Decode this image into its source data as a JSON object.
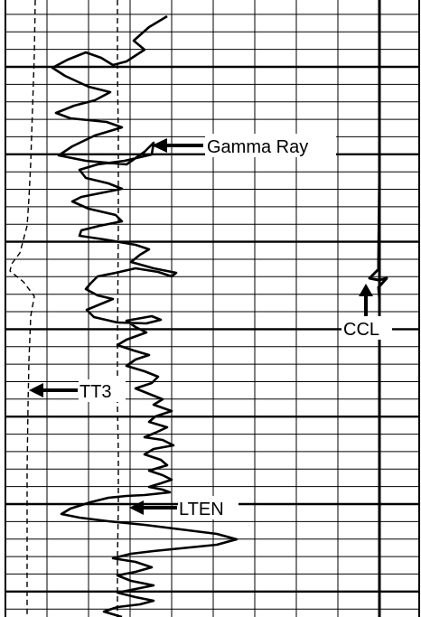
{
  "chart_data": {
    "type": "line",
    "title": "",
    "xlabel": "",
    "ylabel": "",
    "grid": true,
    "annotations": [
      "Gamma Ray",
      "CCL",
      "TT3",
      "LTEN"
    ],
    "series": [
      {
        "name": "Gamma Ray",
        "style": "solid",
        "x": [
          185,
          165,
          148,
          160,
          140,
          125,
          112,
          95,
          75,
          58,
          72,
          98,
          122,
          105,
          82,
          62,
          78,
          118,
          135,
          105,
          80,
          65,
          95,
          140,
          160,
          170,
          168,
          138,
          108,
          88,
          95,
          120,
          135,
          115,
          90,
          80,
          98,
          128,
          135,
          110,
          90,
          88,
          115,
          150,
          165,
          155,
          145,
          170,
          195,
          190,
          175,
          150,
          128,
          108,
          100,
          95,
          108,
          125,
          108,
          96,
          104,
          130,
          162,
          178,
          168,
          140,
          150,
          162,
          140,
          130,
          148,
          165,
          150,
          140,
          160,
          175,
          168,
          150,
          165,
          180,
          170,
          190,
          172,
          165,
          185,
          172,
          160,
          180,
          192,
          170,
          160,
          178,
          185,
          165,
          180,
          190,
          178,
          165,
          180,
          188,
          160,
          140,
          120,
          100,
          78,
          68,
          88,
          120,
          160,
          200,
          240,
          262,
          240,
          200,
          170,
          145,
          125,
          150,
          168,
          150,
          130,
          145,
          170,
          150,
          130,
          150,
          170,
          155,
          130,
          115,
          135
        ],
        "y": [
          18,
          30,
          45,
          55,
          68,
          72,
          64,
          58,
          66,
          75,
          84,
          96,
          102,
          111,
          117,
          125,
          131,
          135,
          141,
          150,
          162,
          172,
          178,
          182,
          168,
          158,
          171,
          178,
          182,
          188,
          197,
          203,
          209,
          213,
          218,
          223,
          231,
          238,
          245,
          250,
          255,
          261,
          265,
          271,
          276,
          282,
          290,
          297,
          302,
          306,
          301,
          297,
          302,
          306,
          314,
          320,
          327,
          331,
          338,
          343,
          351,
          357,
          358,
          354,
          350,
          355,
          362,
          368,
          376,
          382,
          388,
          393,
          398,
          405,
          411,
          417,
          424,
          430,
          436,
          442,
          448,
          455,
          461,
          467,
          473,
          479,
          484,
          487,
          493,
          497,
          503,
          509,
          515,
          521,
          526,
          531,
          535,
          539,
          542,
          545,
          548,
          549,
          551,
          556,
          563,
          569,
          573,
          577,
          581,
          586,
          591,
          597,
          603,
          607,
          610,
          613,
          618,
          622,
          628,
          633,
          637,
          643,
          648,
          652,
          656,
          661,
          665,
          669,
          672,
          677,
          683
        ]
      },
      {
        "name": "LTEN",
        "style": "dash",
        "x": [
          130,
          130,
          131,
          131,
          130,
          130,
          131,
          131,
          130,
          130,
          130
        ],
        "y": [
          0,
          80,
          150,
          250,
          380,
          450,
          500,
          560,
          620,
          660,
          683
        ]
      },
      {
        "name": "TT3",
        "style": "dash",
        "x": [
          39,
          38,
          36,
          34,
          32,
          30,
          22,
          13,
          11,
          26,
          38,
          34,
          32,
          31,
          30,
          30,
          30
        ],
        "y": [
          0,
          60,
          120,
          180,
          220,
          250,
          280,
          292,
          300,
          312,
          328,
          350,
          400,
          450,
          520,
          600,
          683
        ]
      },
      {
        "name": "CCL",
        "style": "solid",
        "x": [
          420,
          420,
          419,
          419,
          409,
          419,
          428,
          419,
          420,
          420,
          420
        ],
        "y": [
          0,
          200,
          290,
          298,
          308,
          310,
          308,
          318,
          330,
          500,
          683
        ]
      }
    ]
  }
}
